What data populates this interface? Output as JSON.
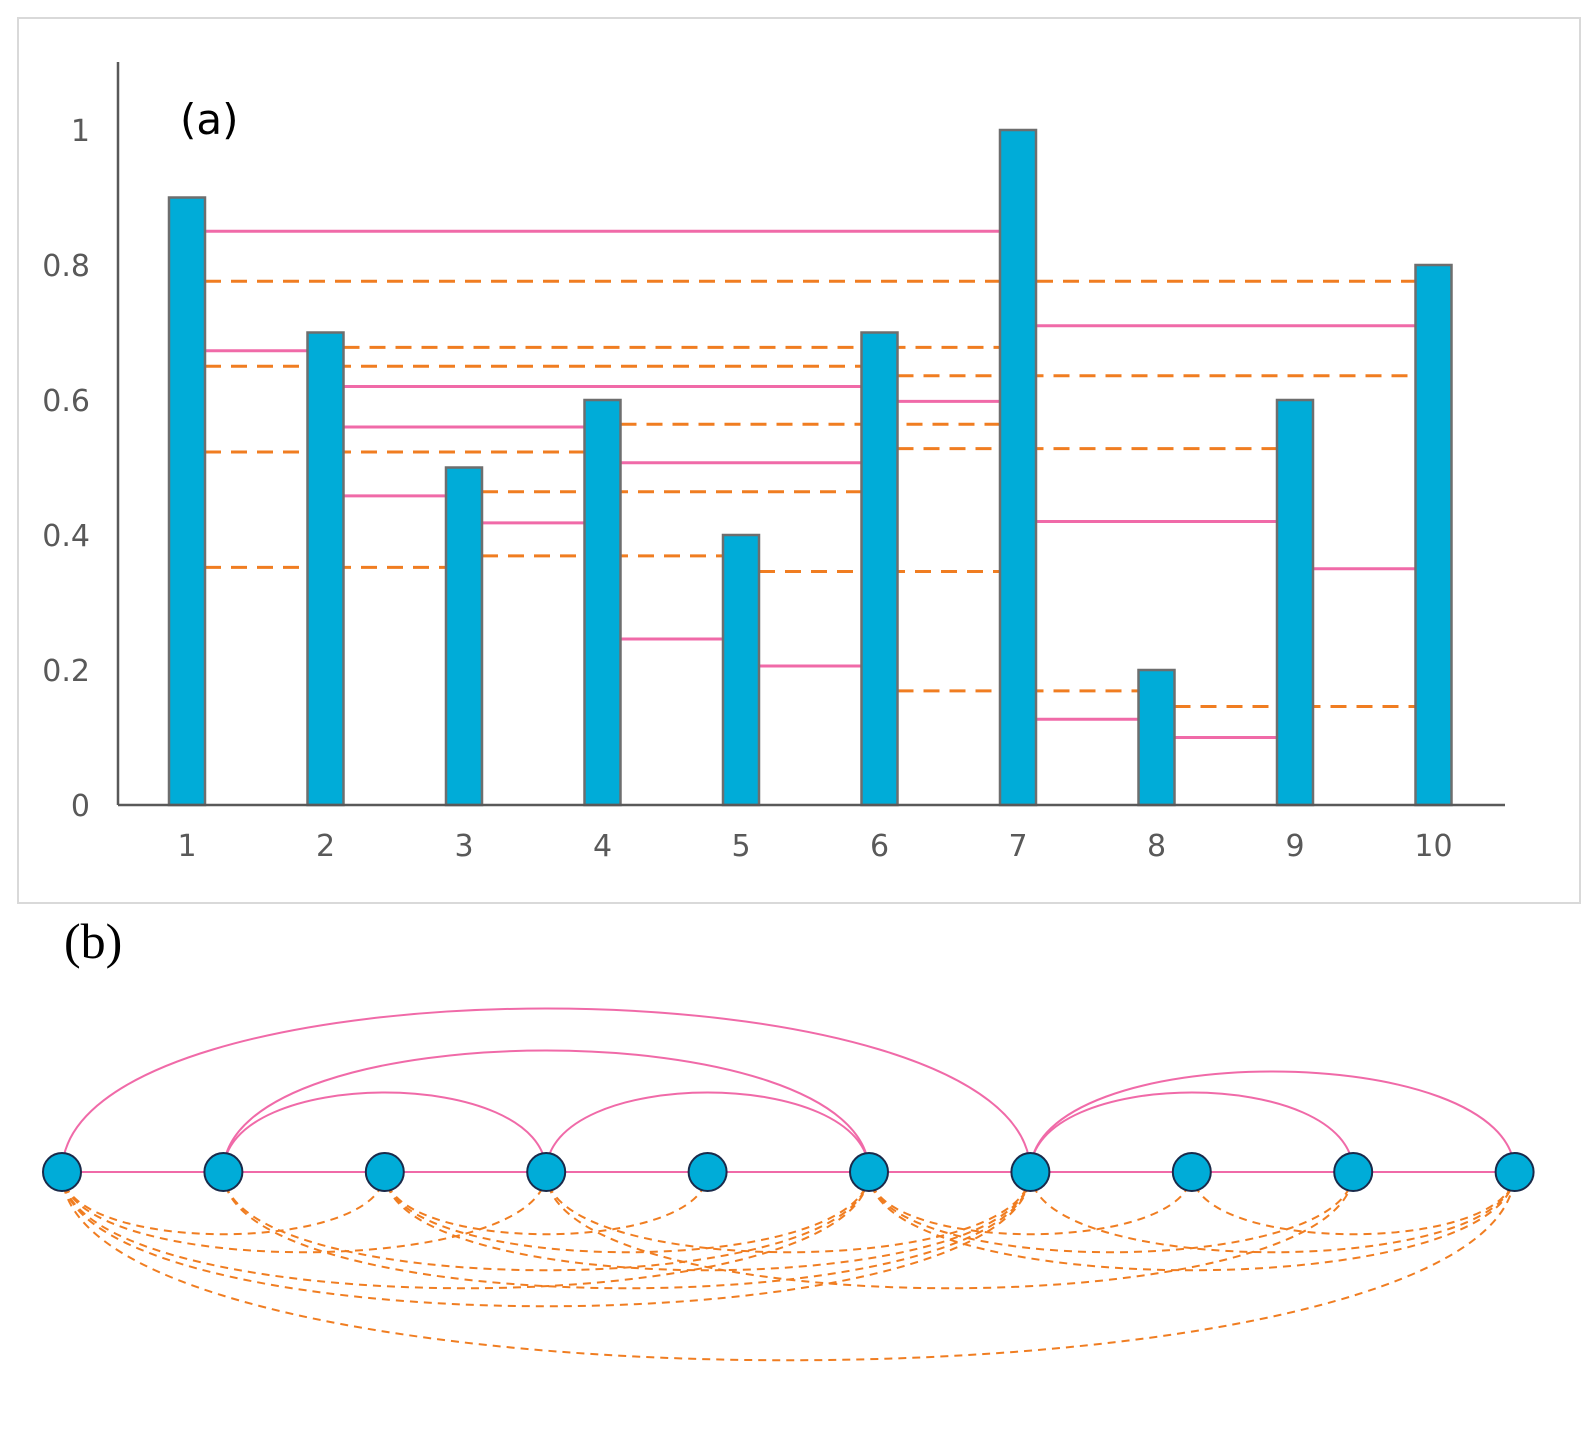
{
  "panels": {
    "a_label": "(a)",
    "b_label": "(b)"
  },
  "chart_data": [
    {
      "type": "bar",
      "categories": [
        "1",
        "2",
        "3",
        "4",
        "5",
        "6",
        "7",
        "8",
        "9",
        "10"
      ],
      "values": [
        0.9,
        0.7,
        0.5,
        0.6,
        0.4,
        0.7,
        1.0,
        0.2,
        0.6,
        0.8
      ],
      "title": "",
      "xlabel": "",
      "ylabel": "",
      "ylim": [
        0,
        1.1
      ],
      "yticks": [
        "0",
        "0.2",
        "0.4",
        "0.6",
        "0.8",
        "1"
      ],
      "grid": false,
      "colors": {
        "bar": "#00acd8",
        "bar_edge": "#6e6e6e",
        "axis": "#595959",
        "solid_link": "#f06aa8",
        "dashed_link": "#f07d21"
      },
      "solid_links": [
        {
          "from": 1,
          "to": 7,
          "y": 0.85
        },
        {
          "from": 1,
          "to": 2,
          "y": 0.673
        },
        {
          "from": 2,
          "to": 6,
          "y": 0.62
        },
        {
          "from": 2,
          "to": 4,
          "y": 0.56
        },
        {
          "from": 2,
          "to": 3,
          "y": 0.458
        },
        {
          "from": 3,
          "to": 4,
          "y": 0.418
        },
        {
          "from": 4,
          "to": 6,
          "y": 0.507
        },
        {
          "from": 4,
          "to": 5,
          "y": 0.246
        },
        {
          "from": 5,
          "to": 6,
          "y": 0.206
        },
        {
          "from": 6,
          "to": 7,
          "y": 0.598
        },
        {
          "from": 7,
          "to": 10,
          "y": 0.71
        },
        {
          "from": 7,
          "to": 9,
          "y": 0.42
        },
        {
          "from": 7,
          "to": 8,
          "y": 0.127
        },
        {
          "from": 8,
          "to": 9,
          "y": 0.1
        },
        {
          "from": 9,
          "to": 10,
          "y": 0.35
        }
      ],
      "dashed_links": [
        {
          "from": 1,
          "to": 10,
          "y": 0.776
        },
        {
          "from": 1,
          "to": 6,
          "y": 0.65
        },
        {
          "from": 1,
          "to": 4,
          "y": 0.523
        },
        {
          "from": 1,
          "to": 3,
          "y": 0.352
        },
        {
          "from": 2,
          "to": 7,
          "y": 0.678
        },
        {
          "from": 3,
          "to": 6,
          "y": 0.464
        },
        {
          "from": 3,
          "to": 5,
          "y": 0.369
        },
        {
          "from": 4,
          "to": 7,
          "y": 0.564
        },
        {
          "from": 5,
          "to": 7,
          "y": 0.346
        },
        {
          "from": 6,
          "to": 10,
          "y": 0.636
        },
        {
          "from": 6,
          "to": 9,
          "y": 0.528
        },
        {
          "from": 6,
          "to": 8,
          "y": 0.169
        },
        {
          "from": 8,
          "to": 10,
          "y": 0.146
        }
      ]
    },
    {
      "type": "network",
      "nodes": [
        "1",
        "2",
        "3",
        "4",
        "5",
        "6",
        "7",
        "8",
        "9",
        "10"
      ],
      "colors": {
        "node": "#00acd8",
        "node_edge": "#1a2a4a",
        "solid_edge": "#f06aa8",
        "dashed_edge": "#f07d21"
      },
      "solid_edges": [
        [
          1,
          2
        ],
        [
          2,
          3
        ],
        [
          3,
          4
        ],
        [
          4,
          5
        ],
        [
          5,
          6
        ],
        [
          6,
          7
        ],
        [
          7,
          8
        ],
        [
          8,
          9
        ],
        [
          9,
          10
        ],
        [
          1,
          7
        ],
        [
          2,
          6
        ],
        [
          2,
          4
        ],
        [
          4,
          6
        ],
        [
          7,
          10
        ],
        [
          7,
          9
        ]
      ],
      "dashed_edges": [
        [
          1,
          3
        ],
        [
          1,
          4
        ],
        [
          1,
          6
        ],
        [
          1,
          7
        ],
        [
          1,
          10
        ],
        [
          2,
          6
        ],
        [
          2,
          7
        ],
        [
          3,
          5
        ],
        [
          3,
          6
        ],
        [
          3,
          7
        ],
        [
          4,
          7
        ],
        [
          4,
          9
        ],
        [
          6,
          8
        ],
        [
          6,
          9
        ],
        [
          6,
          10
        ],
        [
          7,
          10
        ],
        [
          8,
          10
        ]
      ]
    }
  ]
}
